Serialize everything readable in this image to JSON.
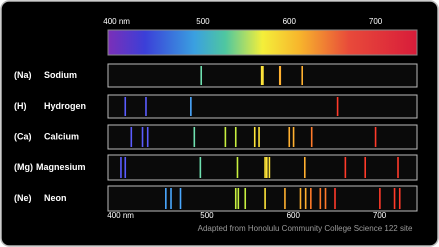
{
  "scale": {
    "range": [
      390,
      748
    ],
    "ticks": [
      {
        "value": 400,
        "label": "400 nm"
      },
      500,
      600,
      700
    ]
  },
  "elements": [
    {
      "symbol": "(Na)",
      "name": "Sodium",
      "lines": [
        498,
        568,
        569.5,
        589,
        589.6,
        615
      ]
    },
    {
      "symbol": "(H)",
      "name": "Hydrogen",
      "lines": [
        410,
        434,
        486,
        656
      ]
    },
    {
      "symbol": "(Ca)",
      "name": "Calcium",
      "lines": [
        417,
        430,
        436,
        490,
        526,
        538,
        560,
        565,
        600,
        605,
        626,
        700
      ]
    },
    {
      "symbol": "(Mg)",
      "name": "Magnesium",
      "lines": [
        405,
        410,
        497,
        540,
        572,
        574,
        577,
        618,
        665,
        688,
        726
      ]
    },
    {
      "symbol": "(Ne)",
      "name": "Neon",
      "lines": [
        457,
        463,
        474,
        538,
        541,
        549,
        572,
        595,
        613,
        619,
        625,
        636,
        642,
        653,
        705,
        722,
        728
      ]
    }
  ],
  "caption": "Adapted from Honolulu Community College Science 122 site"
}
